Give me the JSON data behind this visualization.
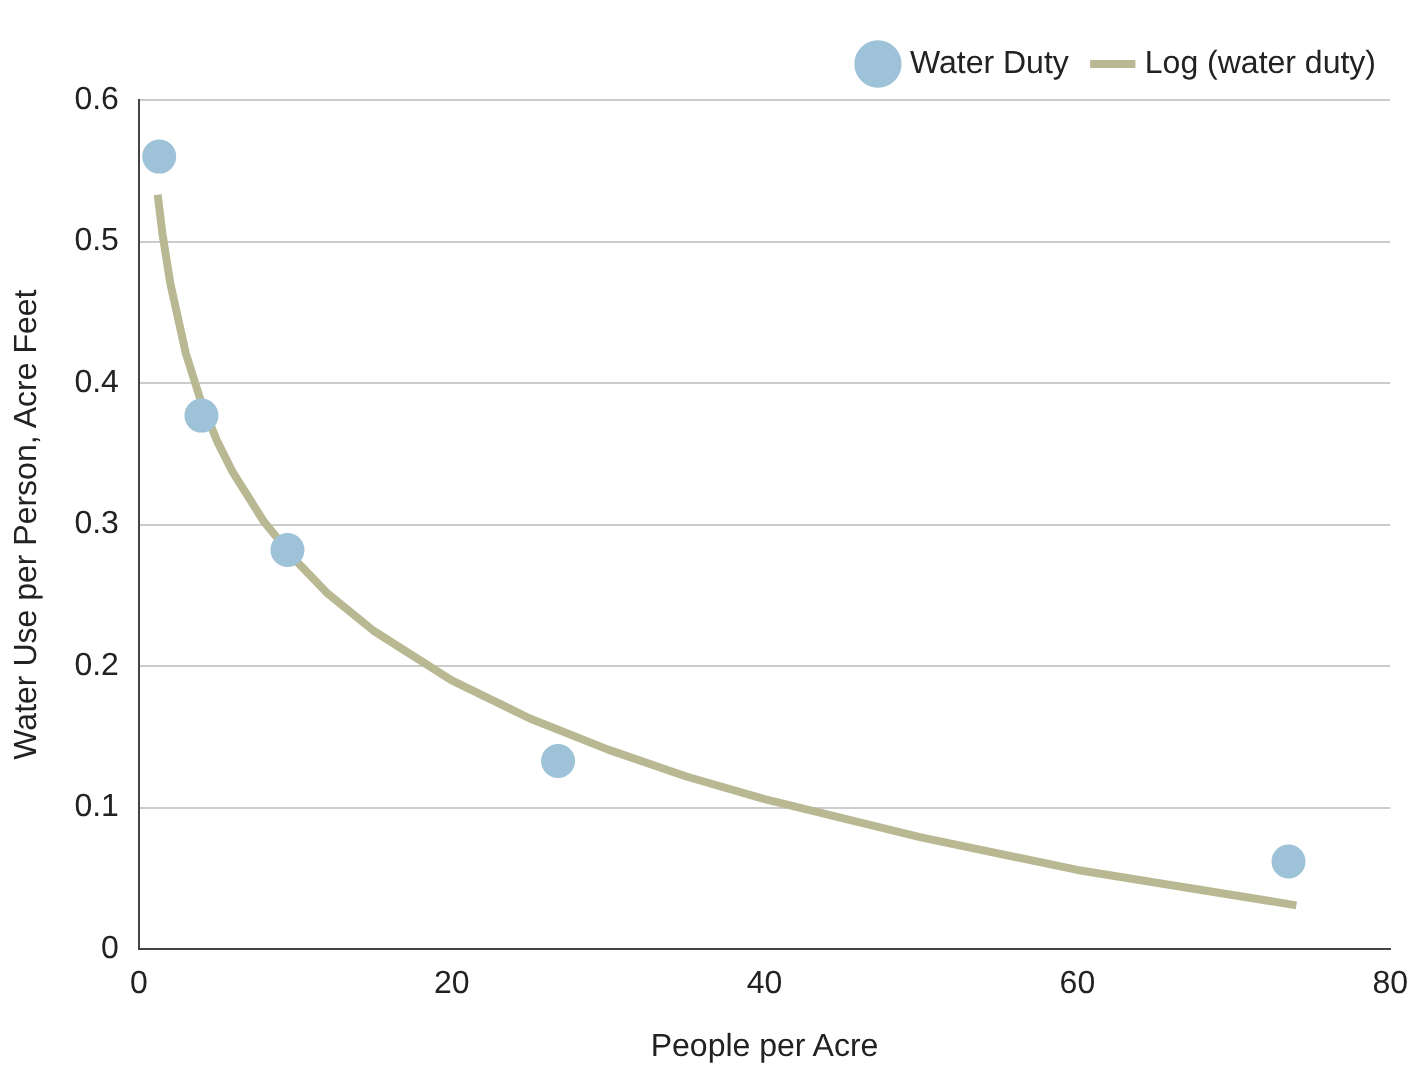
{
  "chart_data": {
    "type": "scatter",
    "xlabel": "People per Acre",
    "ylabel": "Water Use per Person, Acre Feet",
    "series": [
      {
        "name": "Water Duty",
        "marker": "circle",
        "color": "#9ec3d8",
        "x": [
          1.3,
          4.0,
          9.5,
          26.8,
          73.5
        ],
        "values": [
          0.56,
          0.377,
          0.282,
          0.133,
          0.062
        ]
      },
      {
        "name": "Log (water duty)",
        "type": "line",
        "marker": "none",
        "color": "#b8b892",
        "x": [
          1.2,
          1.5,
          2,
          3,
          4,
          5,
          6,
          8,
          10,
          12,
          15,
          20,
          25,
          30,
          35,
          40,
          50,
          60,
          74
        ],
        "values": [
          0.533,
          0.506,
          0.471,
          0.421,
          0.386,
          0.359,
          0.337,
          0.302,
          0.275,
          0.252,
          0.225,
          0.19,
          0.163,
          0.141,
          0.122,
          0.106,
          0.079,
          0.056,
          0.031
        ]
      }
    ],
    "xlim": [
      0,
      80
    ],
    "xticks": [
      0,
      20,
      40,
      60,
      80
    ],
    "ylim": [
      0,
      0.6
    ],
    "yticks": [
      0,
      0.1,
      0.2,
      0.3,
      0.4,
      0.5,
      0.6
    ],
    "grid": "y",
    "legend": "top right"
  }
}
